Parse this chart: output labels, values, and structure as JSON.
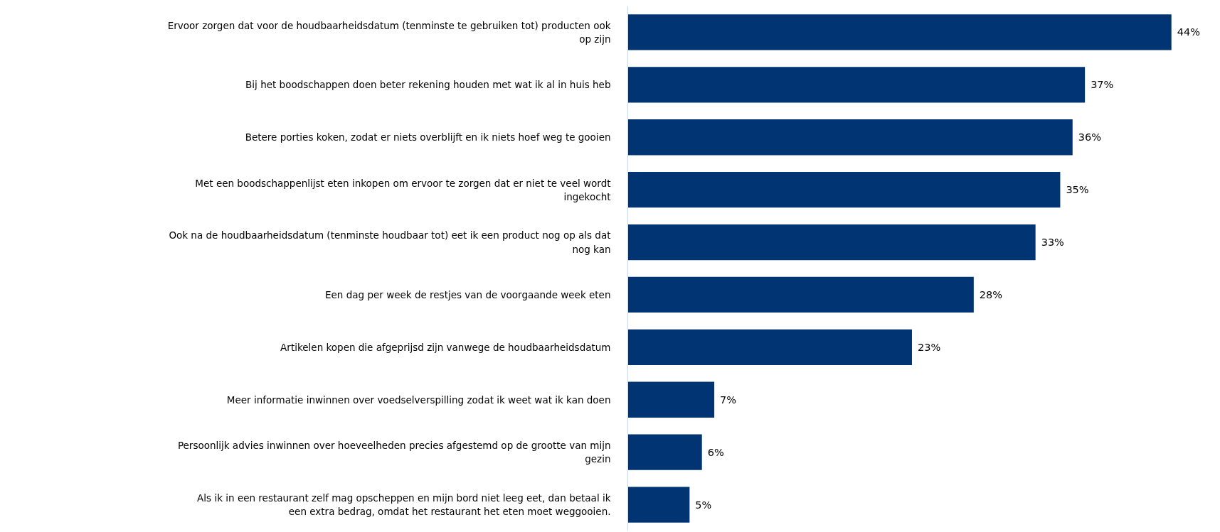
{
  "chart_data": {
    "type": "bar",
    "orientation": "horizontal",
    "data_labels": true,
    "grid": false,
    "categories": [
      "Ervoor zorgen dat voor de houdbaarheidsdatum (tenminste te gebruiken tot) producten ook op zijn",
      "Bij het boodschappen doen beter rekening houden met wat ik al in huis heb",
      "Betere porties koken, zodat er niets overblijft en ik niets hoef weg te gooien",
      "Met een boodschappenlijst eten inkopen om ervoor te zorgen dat er niet te veel wordt ingekocht",
      "Ook na de houdbaarheidsdatum (tenminste houdbaar tot) eet ik een product nog op als dat nog kan",
      "Een dag per week de restjes van de voorgaande week eten",
      "Artikelen kopen die afgeprijsd zijn vanwege de houdbaarheidsdatum",
      "Meer informatie inwinnen over voedselverspilling zodat ik weet wat ik kan doen",
      "Persoonlijk advies inwinnen over hoeveelheden precies afgestemd op de grootte van mijn gezin",
      "Als ik in een restaurant zelf mag opscheppen en mijn bord niet leeg eet, dan betaal ik een extra bedrag, omdat het restaurant het eten moet weggooien."
    ],
    "values": [
      44,
      37,
      36,
      35,
      33,
      28,
      23,
      7,
      6,
      5
    ],
    "value_labels": [
      "44%",
      "37%",
      "36%",
      "35%",
      "33%",
      "28%",
      "23%",
      "7%",
      "6%",
      "5%"
    ],
    "color": "#003473"
  }
}
